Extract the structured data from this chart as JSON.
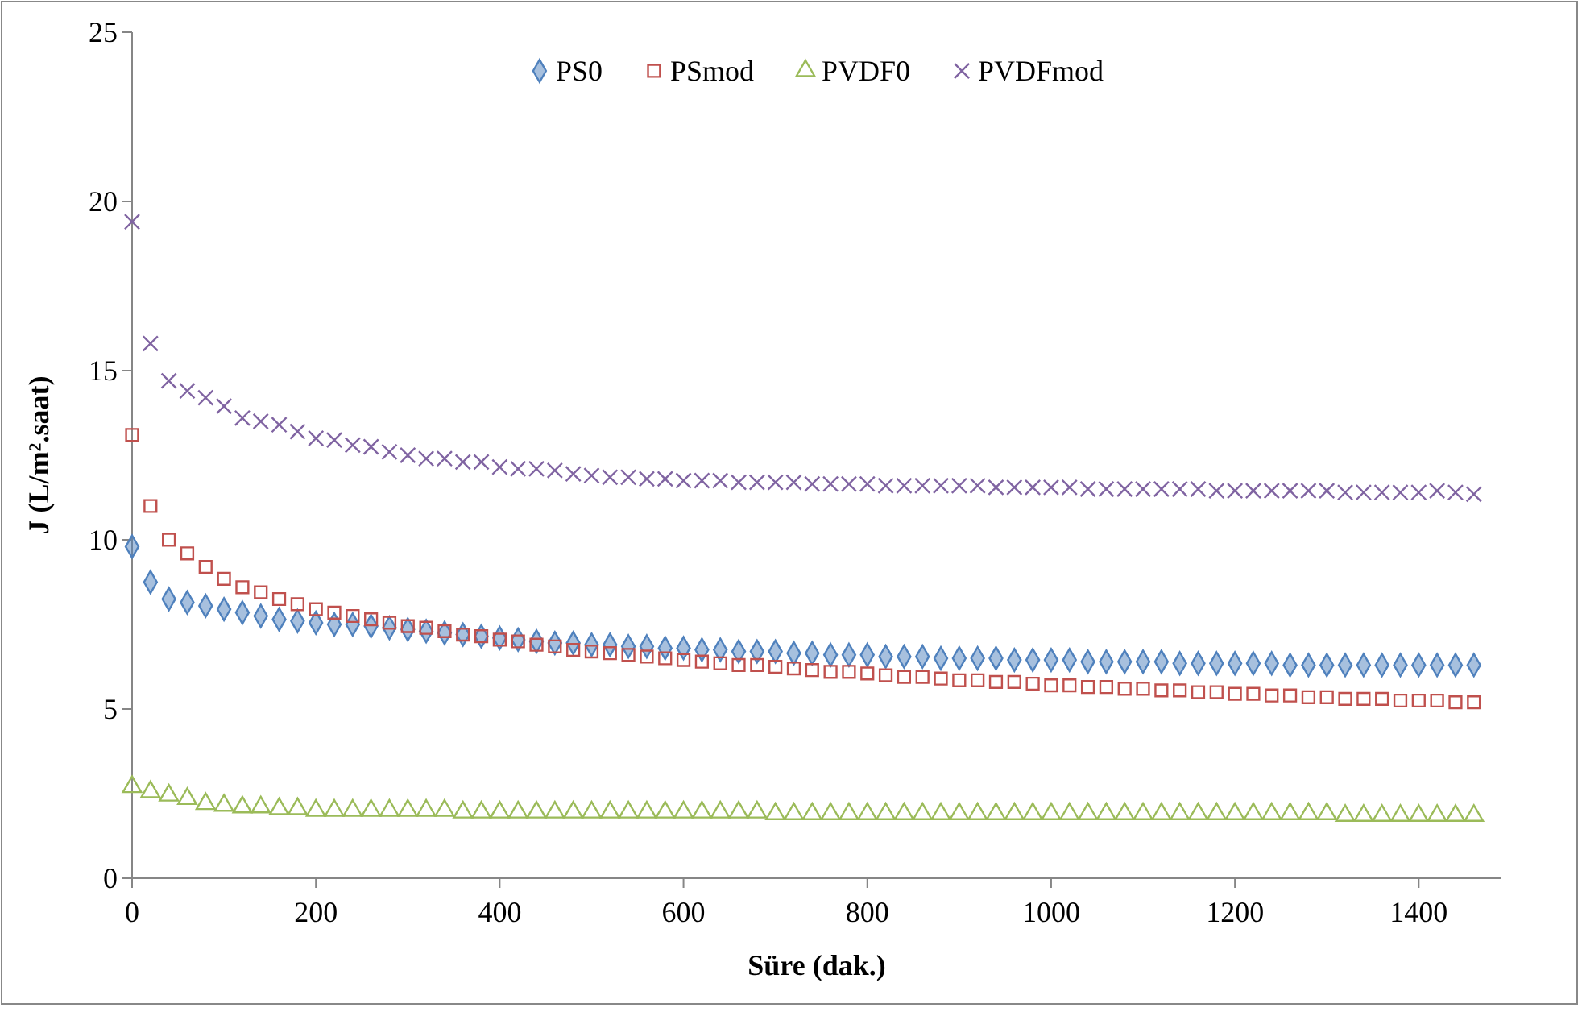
{
  "chart_data": {
    "type": "scatter",
    "xlabel": "Süre (dak.)",
    "ylabel": "J (L/m².saat)",
    "legend": "top",
    "xlim": [
      0,
      1490
    ],
    "xticks": [
      0,
      200,
      400,
      600,
      800,
      1000,
      1200,
      1400
    ],
    "ylim": [
      0,
      25
    ],
    "yticks": [
      0,
      5,
      10,
      15,
      20,
      25
    ],
    "x": [
      0,
      20,
      40,
      60,
      80,
      100,
      120,
      140,
      160,
      180,
      200,
      220,
      240,
      260,
      280,
      300,
      320,
      340,
      360,
      380,
      400,
      420,
      440,
      460,
      480,
      500,
      520,
      540,
      560,
      580,
      600,
      620,
      640,
      660,
      680,
      700,
      720,
      740,
      760,
      780,
      800,
      820,
      840,
      860,
      880,
      900,
      920,
      940,
      960,
      980,
      1000,
      1020,
      1040,
      1060,
      1080,
      1100,
      1120,
      1140,
      1160,
      1180,
      1200,
      1220,
      1240,
      1260,
      1280,
      1300,
      1320,
      1340,
      1360,
      1380,
      1400,
      1420,
      1440,
      1460
    ],
    "series": [
      {
        "name": "PS0",
        "color": "#4f81bd",
        "marker": "diamond",
        "values": [
          9.8,
          8.75,
          8.25,
          8.15,
          8.05,
          7.95,
          7.85,
          7.75,
          7.65,
          7.6,
          7.55,
          7.5,
          7.5,
          7.45,
          7.4,
          7.35,
          7.3,
          7.25,
          7.2,
          7.15,
          7.1,
          7.05,
          7.0,
          6.95,
          6.95,
          6.9,
          6.9,
          6.85,
          6.85,
          6.8,
          6.8,
          6.75,
          6.75,
          6.7,
          6.7,
          6.7,
          6.65,
          6.65,
          6.6,
          6.6,
          6.6,
          6.55,
          6.55,
          6.55,
          6.5,
          6.5,
          6.5,
          6.5,
          6.45,
          6.45,
          6.45,
          6.45,
          6.4,
          6.4,
          6.4,
          6.4,
          6.4,
          6.35,
          6.35,
          6.35,
          6.35,
          6.35,
          6.35,
          6.3,
          6.3,
          6.3,
          6.3,
          6.3,
          6.3,
          6.3,
          6.3,
          6.3,
          6.3,
          6.3
        ]
      },
      {
        "name": "PSmod",
        "color": "#c0504d",
        "marker": "square",
        "values": [
          13.1,
          11.0,
          10.0,
          9.6,
          9.2,
          8.85,
          8.6,
          8.45,
          8.25,
          8.1,
          7.95,
          7.85,
          7.75,
          7.65,
          7.55,
          7.45,
          7.4,
          7.3,
          7.2,
          7.15,
          7.05,
          7.0,
          6.9,
          6.85,
          6.75,
          6.7,
          6.65,
          6.6,
          6.55,
          6.5,
          6.45,
          6.4,
          6.35,
          6.3,
          6.3,
          6.25,
          6.2,
          6.15,
          6.1,
          6.1,
          6.05,
          6.0,
          5.95,
          5.95,
          5.9,
          5.85,
          5.85,
          5.8,
          5.8,
          5.75,
          5.7,
          5.7,
          5.65,
          5.65,
          5.6,
          5.6,
          5.55,
          5.55,
          5.5,
          5.5,
          5.45,
          5.45,
          5.4,
          5.4,
          5.35,
          5.35,
          5.3,
          5.3,
          5.3,
          5.25,
          5.25,
          5.25,
          5.2,
          5.2
        ]
      },
      {
        "name": "PVDF0",
        "color": "#9bbb59",
        "marker": "triangle",
        "values": [
          2.7,
          2.55,
          2.45,
          2.35,
          2.2,
          2.15,
          2.1,
          2.1,
          2.05,
          2.05,
          2.0,
          2.0,
          2.0,
          2.0,
          2.0,
          2.0,
          2.0,
          2.0,
          1.95,
          1.95,
          1.95,
          1.95,
          1.95,
          1.95,
          1.95,
          1.95,
          1.95,
          1.95,
          1.95,
          1.95,
          1.95,
          1.95,
          1.95,
          1.95,
          1.95,
          1.9,
          1.9,
          1.9,
          1.9,
          1.9,
          1.9,
          1.9,
          1.9,
          1.9,
          1.9,
          1.9,
          1.9,
          1.9,
          1.9,
          1.9,
          1.9,
          1.9,
          1.9,
          1.9,
          1.9,
          1.9,
          1.9,
          1.9,
          1.9,
          1.9,
          1.9,
          1.9,
          1.9,
          1.9,
          1.9,
          1.9,
          1.85,
          1.85,
          1.85,
          1.85,
          1.85,
          1.85,
          1.85,
          1.85
        ]
      },
      {
        "name": "PVDFmod",
        "color": "#8064a2",
        "marker": "cross",
        "values": [
          19.4,
          15.8,
          14.7,
          14.4,
          14.2,
          13.95,
          13.6,
          13.5,
          13.4,
          13.2,
          13.0,
          12.95,
          12.8,
          12.75,
          12.6,
          12.5,
          12.4,
          12.4,
          12.3,
          12.3,
          12.15,
          12.1,
          12.1,
          12.05,
          11.95,
          11.9,
          11.85,
          11.85,
          11.8,
          11.8,
          11.75,
          11.75,
          11.75,
          11.7,
          11.7,
          11.7,
          11.7,
          11.65,
          11.65,
          11.65,
          11.65,
          11.6,
          11.6,
          11.6,
          11.6,
          11.6,
          11.6,
          11.55,
          11.55,
          11.55,
          11.55,
          11.55,
          11.5,
          11.5,
          11.5,
          11.5,
          11.5,
          11.5,
          11.5,
          11.45,
          11.45,
          11.45,
          11.45,
          11.45,
          11.45,
          11.45,
          11.4,
          11.4,
          11.4,
          11.4,
          11.4,
          11.45,
          11.4,
          11.35
        ]
      }
    ]
  }
}
